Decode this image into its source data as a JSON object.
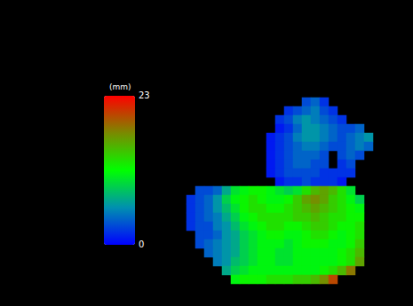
{
  "chart_data": {
    "type": "heatmap",
    "tick_labels": false,
    "colorbar_label": "(mm)",
    "colorbar_range": [
      0,
      23
    ],
    "colorbar_ticks": [
      0,
      23
    ],
    "cells": [
      [
        null,
        null,
        null,
        null,
        null,
        null,
        null,
        null,
        null,
        null,
        null,
        null,
        null,
        3,
        4,
        2,
        null,
        null,
        null,
        null,
        null
      ],
      [
        null,
        null,
        null,
        null,
        null,
        null,
        null,
        null,
        null,
        null,
        null,
        2,
        3,
        4,
        5,
        3,
        2,
        null,
        null,
        null,
        null
      ],
      [
        null,
        null,
        null,
        null,
        null,
        null,
        null,
        null,
        null,
        null,
        2,
        3,
        5,
        6,
        5,
        4,
        3,
        2,
        null,
        null,
        null
      ],
      [
        null,
        null,
        null,
        null,
        null,
        null,
        null,
        null,
        null,
        null,
        1,
        2,
        4,
        6,
        6,
        5,
        4,
        3,
        3,
        4,
        null
      ],
      [
        null,
        null,
        null,
        null,
        null,
        null,
        null,
        null,
        null,
        1,
        2,
        3,
        5,
        6,
        6,
        5,
        4,
        3,
        4,
        5,
        6
      ],
      [
        null,
        null,
        null,
        null,
        null,
        null,
        null,
        null,
        null,
        1,
        2,
        3,
        4,
        5,
        5,
        4,
        3,
        3,
        4,
        5,
        4
      ],
      [
        null,
        null,
        null,
        null,
        null,
        null,
        null,
        null,
        null,
        1,
        2,
        3,
        4,
        4,
        4,
        3,
        null,
        3,
        4,
        3,
        null
      ],
      [
        null,
        null,
        null,
        null,
        null,
        null,
        null,
        null,
        null,
        1,
        2,
        3,
        4,
        4,
        3,
        3,
        null,
        2,
        3,
        null,
        null
      ],
      [
        null,
        null,
        null,
        null,
        null,
        null,
        null,
        null,
        null,
        1,
        2,
        3,
        3,
        3,
        3,
        2,
        2,
        2,
        2,
        null,
        null
      ],
      [
        null,
        null,
        null,
        null,
        null,
        null,
        null,
        null,
        null,
        null,
        1,
        2,
        2,
        3,
        2,
        2,
        2,
        1,
        null,
        null,
        null
      ],
      [
        null,
        3,
        3,
        4,
        7,
        10,
        11,
        12,
        12,
        11,
        10,
        9,
        10,
        13,
        15,
        16,
        15,
        13,
        10,
        null,
        null
      ],
      [
        2,
        3,
        4,
        6,
        9,
        11,
        12,
        13,
        12,
        11,
        11,
        12,
        14,
        16,
        17,
        16,
        14,
        13,
        11,
        9,
        null
      ],
      [
        2,
        3,
        4,
        6,
        8,
        10,
        12,
        13,
        13,
        12,
        12,
        13,
        14,
        15,
        16,
        15,
        14,
        13,
        12,
        11,
        null
      ],
      [
        2,
        3,
        4,
        5,
        7,
        9,
        11,
        12,
        13,
        13,
        13,
        13,
        14,
        14,
        15,
        14,
        13,
        13,
        12,
        12,
        null
      ],
      [
        2,
        3,
        3,
        5,
        6,
        8,
        10,
        11,
        12,
        13,
        13,
        12,
        12,
        13,
        14,
        14,
        13,
        12,
        12,
        13,
        null
      ],
      [
        null,
        3,
        3,
        4,
        6,
        7,
        9,
        10,
        11,
        12,
        12,
        11,
        11,
        12,
        13,
        13,
        12,
        11,
        12,
        13,
        null
      ],
      [
        null,
        3,
        4,
        5,
        6,
        7,
        9,
        10,
        11,
        11,
        11,
        10,
        11,
        12,
        12,
        12,
        11,
        11,
        12,
        14,
        null
      ],
      [
        null,
        null,
        4,
        5,
        6,
        7,
        9,
        10,
        11,
        11,
        10,
        10,
        11,
        11,
        11,
        11,
        11,
        12,
        13,
        15,
        null
      ],
      [
        null,
        null,
        null,
        5,
        6,
        8,
        9,
        10,
        11,
        11,
        10,
        10,
        11,
        11,
        11,
        11,
        11,
        12,
        13,
        16,
        null
      ],
      [
        null,
        null,
        null,
        null,
        7,
        9,
        10,
        11,
        11,
        11,
        11,
        11,
        11,
        11,
        11,
        12,
        13,
        15,
        18,
        null,
        null
      ],
      [
        null,
        null,
        null,
        null,
        null,
        11,
        12,
        12,
        12,
        13,
        13,
        13,
        14,
        14,
        15,
        17,
        20,
        null,
        null,
        null,
        null
      ]
    ]
  }
}
